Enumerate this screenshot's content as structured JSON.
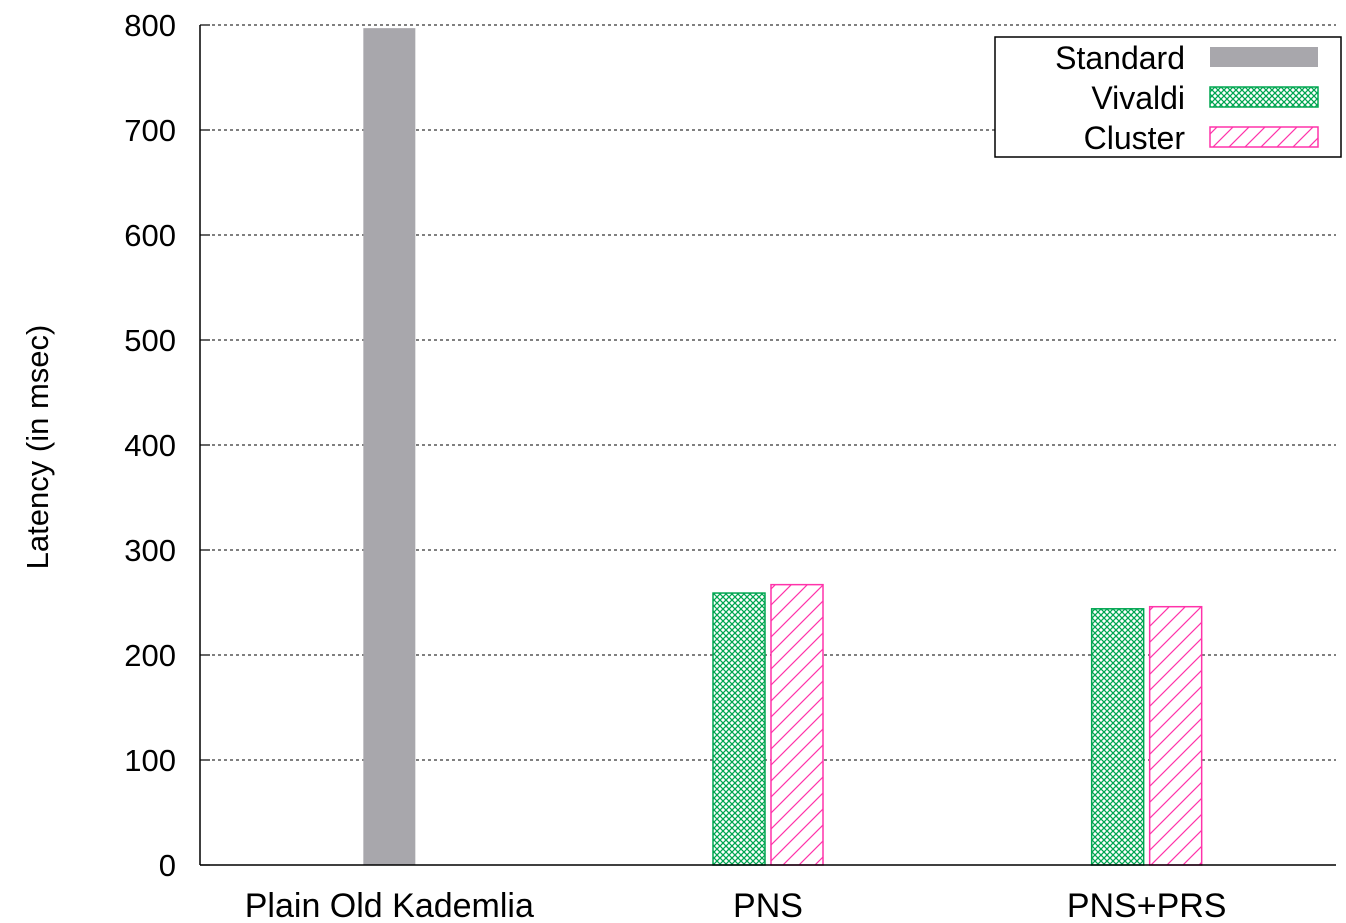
{
  "chart_data": {
    "type": "bar",
    "title": "",
    "xlabel": "",
    "ylabel": "Latency (in msec)",
    "ylim": [
      0,
      800
    ],
    "yticks": [
      0,
      100,
      200,
      300,
      400,
      500,
      600,
      700,
      800
    ],
    "grid": true,
    "legend_position": "top-right",
    "categories": [
      "Plain Old Kademlia",
      "PNS",
      "PNS+PRS"
    ],
    "series": [
      {
        "name": "Standard",
        "color": "#a8a7ac",
        "pattern": "solid",
        "values": [
          797,
          null,
          null
        ]
      },
      {
        "name": "Vivaldi",
        "color": "#00a651",
        "pattern": "crosshatch",
        "values": [
          null,
          259,
          244
        ]
      },
      {
        "name": "Cluster",
        "color": "#ff33aa",
        "pattern": "diagonal",
        "values": [
          null,
          267,
          246
        ]
      }
    ]
  }
}
